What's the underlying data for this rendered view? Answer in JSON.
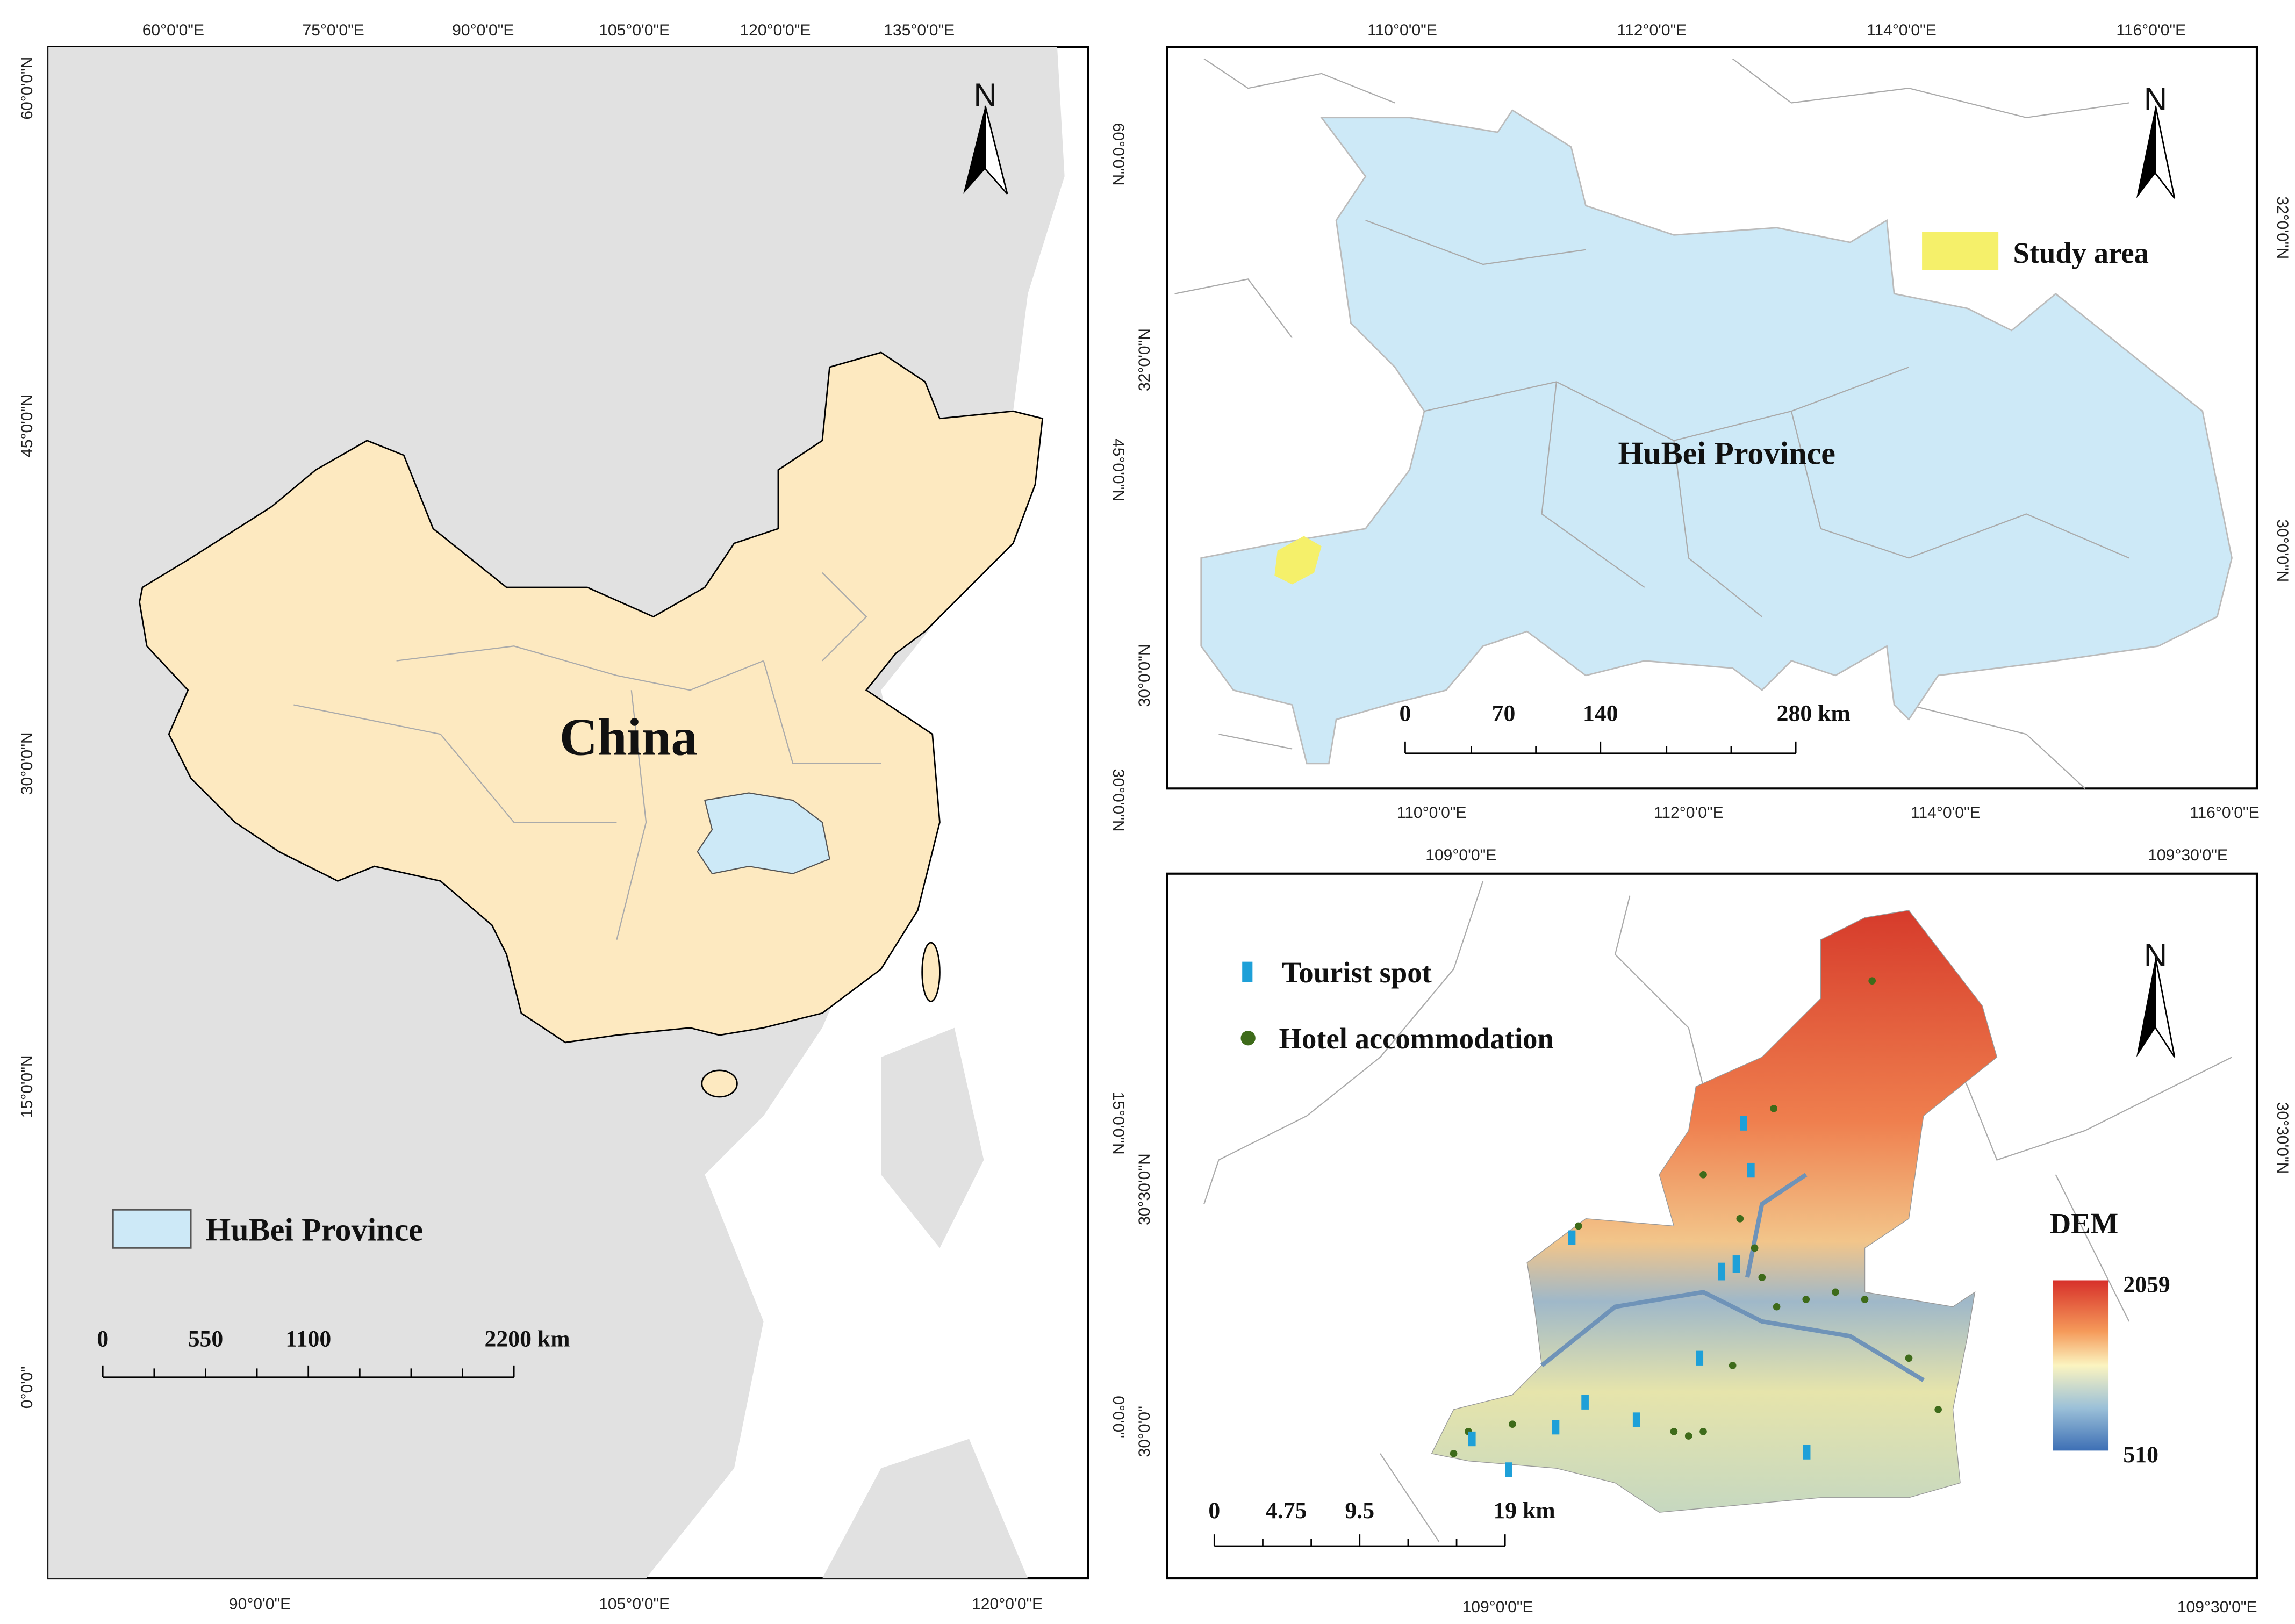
{
  "panel_a": {
    "top_labels": [
      "60°0'0\"E",
      "75°0'0\"E",
      "90°0'0\"E",
      "105°0'0\"E",
      "120°0'0\"E",
      "135°0'0\"E"
    ],
    "bottom_labels": [
      "90°0'0\"E",
      "105°0'0\"E",
      "120°0'0\"E"
    ],
    "left_labels": [
      "60°0'0\"N",
      "45°0'0\"N",
      "30°0'0\"N",
      "15°0'0\"N",
      "0°0'0\""
    ],
    "right_labels": [
      "60°0'0\"N",
      "45°0'0\"N",
      "30°0'0\"N",
      "15°0'0\"N",
      "0°0'0\""
    ],
    "north": "N",
    "country_label": "China",
    "legend": "HuBei Province",
    "scale_bar": [
      "0",
      "550",
      "1100",
      "2200 km"
    ]
  },
  "panel_b": {
    "top_labels": [
      "110°0'0\"E",
      "112°0'0\"E",
      "114°0'0\"E",
      "116°0'0\"E"
    ],
    "bottom_labels": [
      "110°0'0\"E",
      "112°0'0\"E",
      "114°0'0\"E",
      "116°0'0\"E"
    ],
    "left_labels": [
      "32°0'0\"N",
      "30°0'0\"N"
    ],
    "right_labels": [
      "32°0'0\"N",
      "30°0'0\"N"
    ],
    "north": "N",
    "province_label": "HuBei Province",
    "legend": "Study area",
    "scale_bar": [
      "0",
      "70",
      "140",
      "280  km"
    ]
  },
  "panel_c": {
    "top_labels": [
      "109°0'0\"E",
      "109°30'0\"E"
    ],
    "bottom_labels": [
      "109°0'0\"E",
      "109°30'0\"E"
    ],
    "left_labels": [
      "30°30'0\"N",
      "30°0'0\""
    ],
    "right_labels": [
      "30°30'0\"N"
    ],
    "north": "N",
    "legend": [
      "Tourist spot",
      "Hotel accommodation"
    ],
    "dem_title": "DEM",
    "dem_max": "2059",
    "dem_min": "510",
    "scale_bar": [
      "0",
      "4.75",
      "9.5",
      "19 km"
    ]
  }
}
